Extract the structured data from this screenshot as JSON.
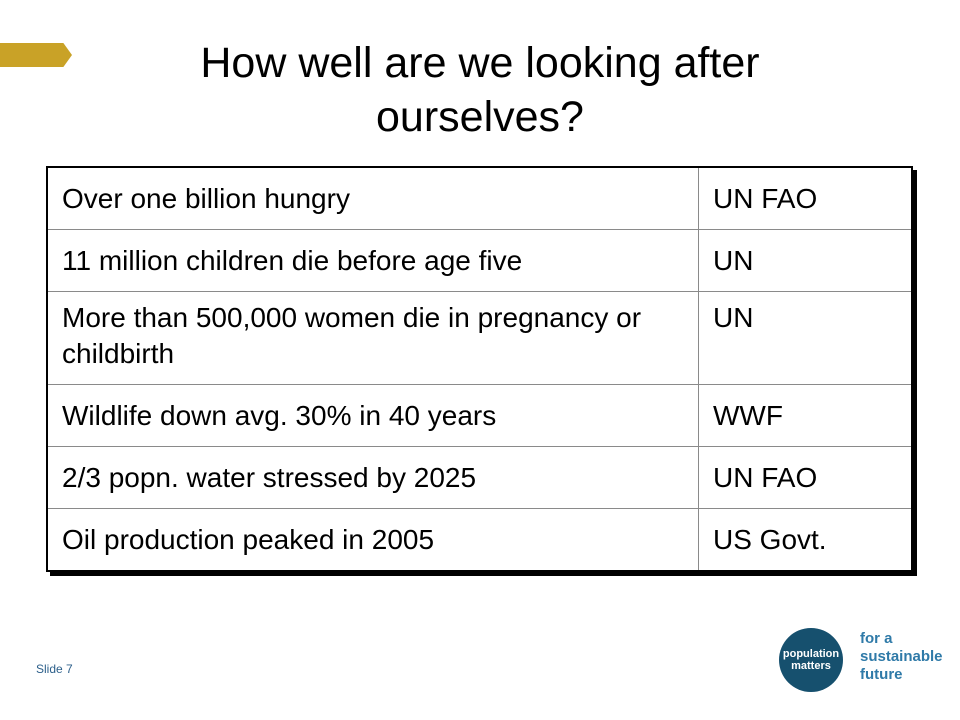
{
  "title": "How well are we looking after ourselves?",
  "table": {
    "rows": [
      {
        "fact": "Over one billion hungry",
        "source": "UN FAO"
      },
      {
        "fact": "11 million children die before age five",
        "source": "UN"
      },
      {
        "fact": "More than 500,000 women die in pregnancy or childbirth",
        "source": "UN"
      },
      {
        "fact": "Wildlife down avg. 30% in 40 years",
        "source": "WWF"
      },
      {
        "fact": "2/3 popn. water stressed by 2025",
        "source": "UN FAO"
      },
      {
        "fact": "Oil production peaked in 2005",
        "source": "US Govt."
      }
    ]
  },
  "footer": {
    "slide_label": "Slide 7",
    "logo_line1": "population",
    "logo_line2": "matters",
    "tagline_line1": "for a",
    "tagline_line2": "sustainable",
    "tagline_line3": "future"
  },
  "colors": {
    "accent_tab": "#c9a227",
    "logo_circle": "#16506e",
    "tagline": "#2f7aa8"
  }
}
